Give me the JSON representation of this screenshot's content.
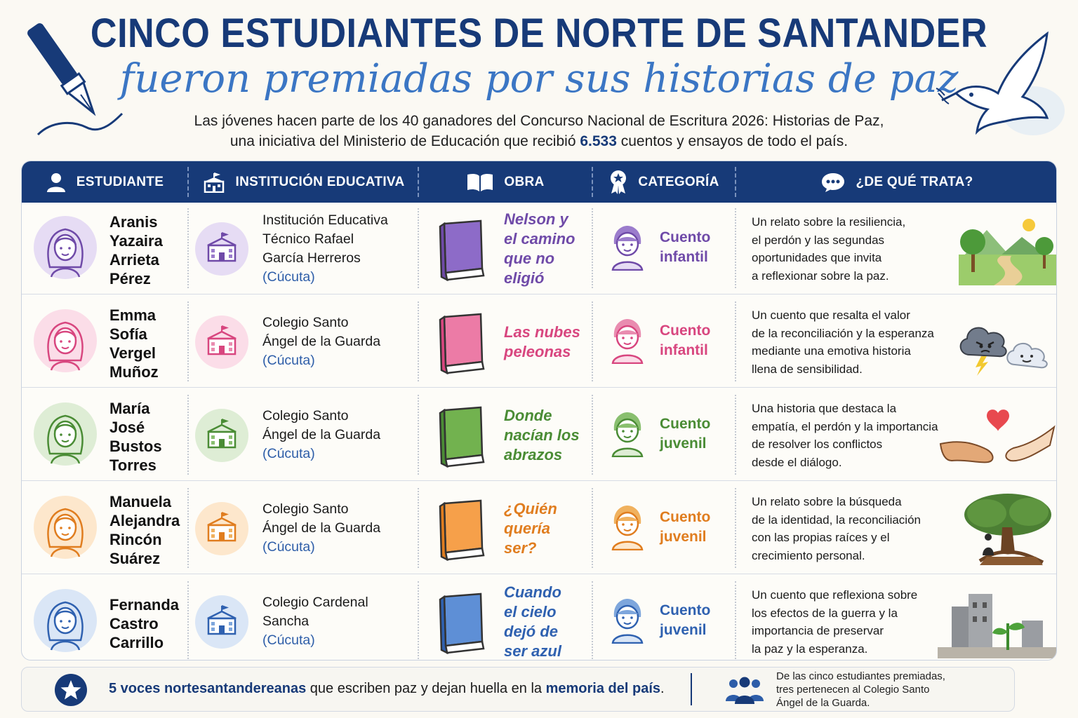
{
  "header": {
    "title": "CINCO ESTUDIANTES DE NORTE DE SANTANDER",
    "subtitle": "fueron premiadas por sus historias de paz",
    "intro_line1": "Las jóvenes hacen parte de los 40 ganadores del Concurso Nacional de Escritura 2026: Historias de Paz,",
    "intro_line2_before": "una iniciativa del Ministerio de Educación que recibió ",
    "intro_line2_number": "6.533",
    "intro_line2_after": " cuentos y ensayos de todo el país."
  },
  "columns": {
    "student": "ESTUDIANTE",
    "school": "INSTITUCIÓN EDUCATIVA",
    "work": "OBRA",
    "category": "CATEGORÍA",
    "about": "¿DE QUÉ TRATA?"
  },
  "colors": {
    "navy": "#173a78",
    "purple": "#6f4aa8",
    "pink": "#d8467f",
    "green": "#4a8c35",
    "orange": "#e07d1f",
    "blue": "#2f61b0"
  },
  "rows": [
    {
      "student": [
        "Aranis",
        "Yazaira",
        "Arrieta",
        "Pérez"
      ],
      "school": [
        "Institución Educativa",
        "Técnico Rafael",
        "García Herreros"
      ],
      "city": "(Cúcuta)",
      "work": [
        "Nelson y",
        "el camino",
        "que no",
        "eligió"
      ],
      "category": [
        "Cuento",
        "infantil"
      ],
      "about": [
        "Un relato sobre la resiliencia,",
        "el perdón y las segundas",
        "oportunidades que invita",
        "a reflexionar sobre la paz."
      ],
      "illustration": "path-landscape-icon"
    },
    {
      "student": [
        "Emma",
        "Sofía",
        "Vergel",
        "Muñoz"
      ],
      "school": [
        "Colegio Santo",
        "Ángel de la Guarda"
      ],
      "city": "(Cúcuta)",
      "work": [
        "Las nubes",
        "peleonas"
      ],
      "category": [
        "Cuento",
        "infantil"
      ],
      "about": [
        "Un cuento que resalta el valor",
        "de la reconciliación y la esperanza",
        "mediante una emotiva historia",
        "llena de sensibilidad."
      ],
      "illustration": "clouds-icon"
    },
    {
      "student": [
        "María",
        "José",
        "Bustos",
        "Torres"
      ],
      "school": [
        "Colegio Santo",
        "Ángel de la Guarda"
      ],
      "city": "(Cúcuta)",
      "work": [
        "Donde",
        "nacían los",
        "abrazos"
      ],
      "category": [
        "Cuento",
        "juvenil"
      ],
      "about": [
        "Una historia que destaca la",
        "empatía, el perdón y la importancia",
        "de resolver los conflictos",
        "desde el diálogo."
      ],
      "illustration": "hands-heart-icon"
    },
    {
      "student": [
        "Manuela",
        "Alejandra",
        "Rincón",
        "Suárez"
      ],
      "school": [
        "Colegio Santo",
        "Ángel de la Guarda"
      ],
      "city": "(Cúcuta)",
      "work": [
        "¿Quién",
        "quería",
        "ser?"
      ],
      "category": [
        "Cuento",
        "juvenil"
      ],
      "about": [
        "Un relato sobre la búsqueda",
        "de la identidad, la reconciliación",
        "con las propias raíces y el",
        "crecimiento personal."
      ],
      "illustration": "tree-roots-icon"
    },
    {
      "student": [
        "Fernanda",
        "Castro",
        "Carrillo"
      ],
      "school": [
        "Colegio Cardenal",
        "Sancha"
      ],
      "city": "(Cúcuta)",
      "work": [
        "Cuando",
        "el cielo",
        "dejó de",
        "ser azul"
      ],
      "category": [
        "Cuento",
        "juvenil"
      ],
      "about": [
        "Un cuento que reflexiona sobre",
        "los efectos de la guerra y la",
        "importancia de preservar",
        "la paz y la esperanza."
      ],
      "illustration": "ruins-sprout-icon"
    }
  ],
  "footer": {
    "lead_bold": "5 voces nortesantandereanas",
    "middle": " que escriben paz y dejan huella en la ",
    "end_bold": "memoria del país",
    "end": ".",
    "note": [
      "De las cinco estudiantes premiadas,",
      "tres pertenecen al Colegio Santo",
      "Ángel de la Guarda."
    ]
  }
}
